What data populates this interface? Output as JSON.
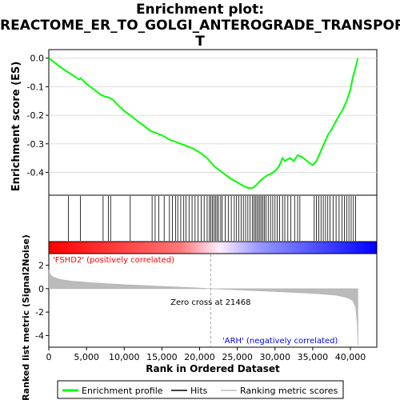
{
  "title": {
    "line1": "Enrichment plot:",
    "line2": "REACTOME_ER_TO_GOLGI_ANTEROGRADE_TRANSPOR",
    "line3": "T"
  },
  "colors": {
    "enrichment": "#00ff00",
    "hits": "#000000",
    "metric": "#bbbbbb",
    "pos": "#ff0000",
    "neg": "#0000ff"
  },
  "chart_data": {
    "type": "line",
    "es_panel": {
      "ylabel": "Enrichment score (ES)",
      "ylim": [
        -0.48,
        0.03
      ],
      "yticks": [
        "0.0",
        "-0.1",
        "-0.2",
        "-0.3",
        "-0.4"
      ],
      "ytick_values": [
        0.0,
        -0.1,
        -0.2,
        -0.3,
        -0.4
      ],
      "series": [
        {
          "name": "Enrichment profile",
          "x": [
            0,
            1000,
            2000,
            2600,
            3200,
            4000,
            4200,
            5000,
            6000,
            7000,
            7500,
            8000,
            8500,
            9000,
            10000,
            10800,
            11500,
            12500,
            13500,
            14000,
            15000,
            16000,
            17000,
            18000,
            19000,
            20000,
            21000,
            21500,
            22000,
            23000,
            24000,
            25000,
            25300,
            26000,
            26500,
            27000,
            27500,
            28000,
            28500,
            29000,
            29500,
            30000,
            30500,
            31000,
            31300,
            32000,
            32500,
            33000,
            33500,
            34000,
            34500,
            35000,
            35500,
            36000,
            36500,
            37000,
            37500,
            38000,
            38500,
            39000,
            39500,
            40000,
            40300,
            40600,
            40800,
            41000
          ],
          "y": [
            0.0,
            -0.02,
            -0.04,
            -0.05,
            -0.06,
            -0.075,
            -0.07,
            -0.09,
            -0.11,
            -0.13,
            -0.135,
            -0.138,
            -0.145,
            -0.16,
            -0.185,
            -0.2,
            -0.215,
            -0.235,
            -0.255,
            -0.26,
            -0.27,
            -0.285,
            -0.295,
            -0.305,
            -0.315,
            -0.33,
            -0.35,
            -0.365,
            -0.38,
            -0.4,
            -0.42,
            -0.435,
            -0.44,
            -0.45,
            -0.455,
            -0.455,
            -0.445,
            -0.43,
            -0.42,
            -0.41,
            -0.405,
            -0.395,
            -0.38,
            -0.35,
            -0.36,
            -0.35,
            -0.36,
            -0.34,
            -0.345,
            -0.355,
            -0.365,
            -0.375,
            -0.36,
            -0.33,
            -0.3,
            -0.27,
            -0.25,
            -0.225,
            -0.2,
            -0.18,
            -0.15,
            -0.11,
            -0.07,
            -0.04,
            -0.02,
            0.0
          ]
        }
      ]
    },
    "hits_x": [
      2600,
      4200,
      7200,
      7900,
      8200,
      10800,
      13700,
      14100,
      14600,
      15300,
      16000,
      16400,
      16800,
      17100,
      17500,
      17900,
      18200,
      18600,
      19000,
      19400,
      19800,
      20200,
      20600,
      21000,
      21300,
      21500,
      21700,
      21900,
      22100,
      22300,
      22500,
      22800,
      23000,
      23400,
      23800,
      24200,
      24600,
      24900,
      25200,
      25500,
      25800,
      26100,
      26400,
      26700,
      27000,
      27200,
      27400,
      27600,
      27800,
      28000,
      28200,
      28400,
      28600,
      28800,
      29100,
      29400,
      29700,
      30000,
      30300,
      30600,
      31000,
      31300,
      31700,
      32100,
      32600,
      33000,
      33300,
      35200,
      35500,
      35800,
      36100,
      36400,
      36700,
      37000,
      37300,
      37700,
      38100,
      38500,
      38900,
      39200,
      39500,
      39800,
      40100,
      40400,
      40700
    ],
    "metric_panel": {
      "ylabel": "Ranked list metric (Signal2Noise)",
      "ylim": [
        -5,
        3
      ],
      "yticks": [
        "2",
        "0",
        "-2",
        "-4"
      ],
      "ytick_values": [
        2,
        0,
        -2,
        -4
      ],
      "x": [
        0,
        200,
        600,
        1500,
        3000,
        6000,
        10000,
        15000,
        20000,
        21468,
        25000,
        30000,
        35000,
        38000,
        39500,
        40300,
        40700,
        40900,
        41000
      ],
      "y": [
        1.6,
        1.2,
        1.0,
        0.8,
        0.65,
        0.5,
        0.35,
        0.2,
        0.06,
        0.0,
        -0.1,
        -0.25,
        -0.4,
        -0.55,
        -0.75,
        -1.0,
        -1.6,
        -3.0,
        -4.8
      ]
    },
    "pos_label": "'FSHD2' (positively correlated)",
    "neg_label": "'ARH' (negatively correlated)",
    "zero_cross_label": "Zero cross at 21468",
    "zero_cross": 21468,
    "xlabel": "Rank in Ordered Dataset",
    "xlim": [
      0,
      43500
    ],
    "xticks": [
      "0",
      "5,000",
      "10,000",
      "15,000",
      "20,000",
      "25,000",
      "30,000",
      "35,000",
      "40,000"
    ],
    "xtick_values": [
      0,
      5000,
      10000,
      15000,
      20000,
      25000,
      30000,
      35000,
      40000
    ],
    "total": 41000,
    "legend": [
      {
        "name": "Enrichment profile"
      },
      {
        "name": "Hits"
      },
      {
        "name": "Ranking metric scores"
      }
    ]
  }
}
